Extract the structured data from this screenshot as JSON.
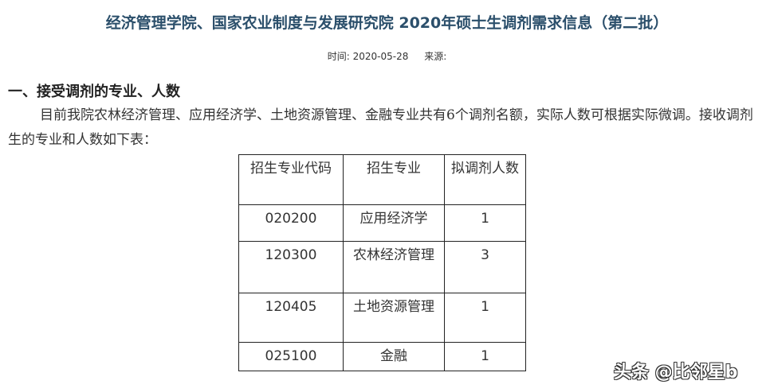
{
  "title": "经济管理学院、国家农业制度与发展研究院 2020年硕士生调剂需求信息（第二批）",
  "meta": {
    "time": "时间: 2020-05-28",
    "source": "来源:"
  },
  "section_heading": "一、接受调剂的专业、人数",
  "paragraph": "目前我院农林经济管理、应用经济学、土地资源管理、金融专业共有6个调剂名额，实际人数可根据实际微调。接收调剂生的专业和人数如下表：",
  "table": {
    "headers": [
      "招生专业代码",
      "招生专业",
      "拟调剂人数"
    ],
    "rows": [
      [
        "020200",
        "应用经济学",
        "1"
      ],
      [
        "120300",
        "农林经济管理",
        "3"
      ],
      [
        "120405",
        "土地资源管理",
        "1"
      ],
      [
        "025100",
        "金融",
        "1"
      ]
    ]
  },
  "watermark": "头条 @比邻星b"
}
